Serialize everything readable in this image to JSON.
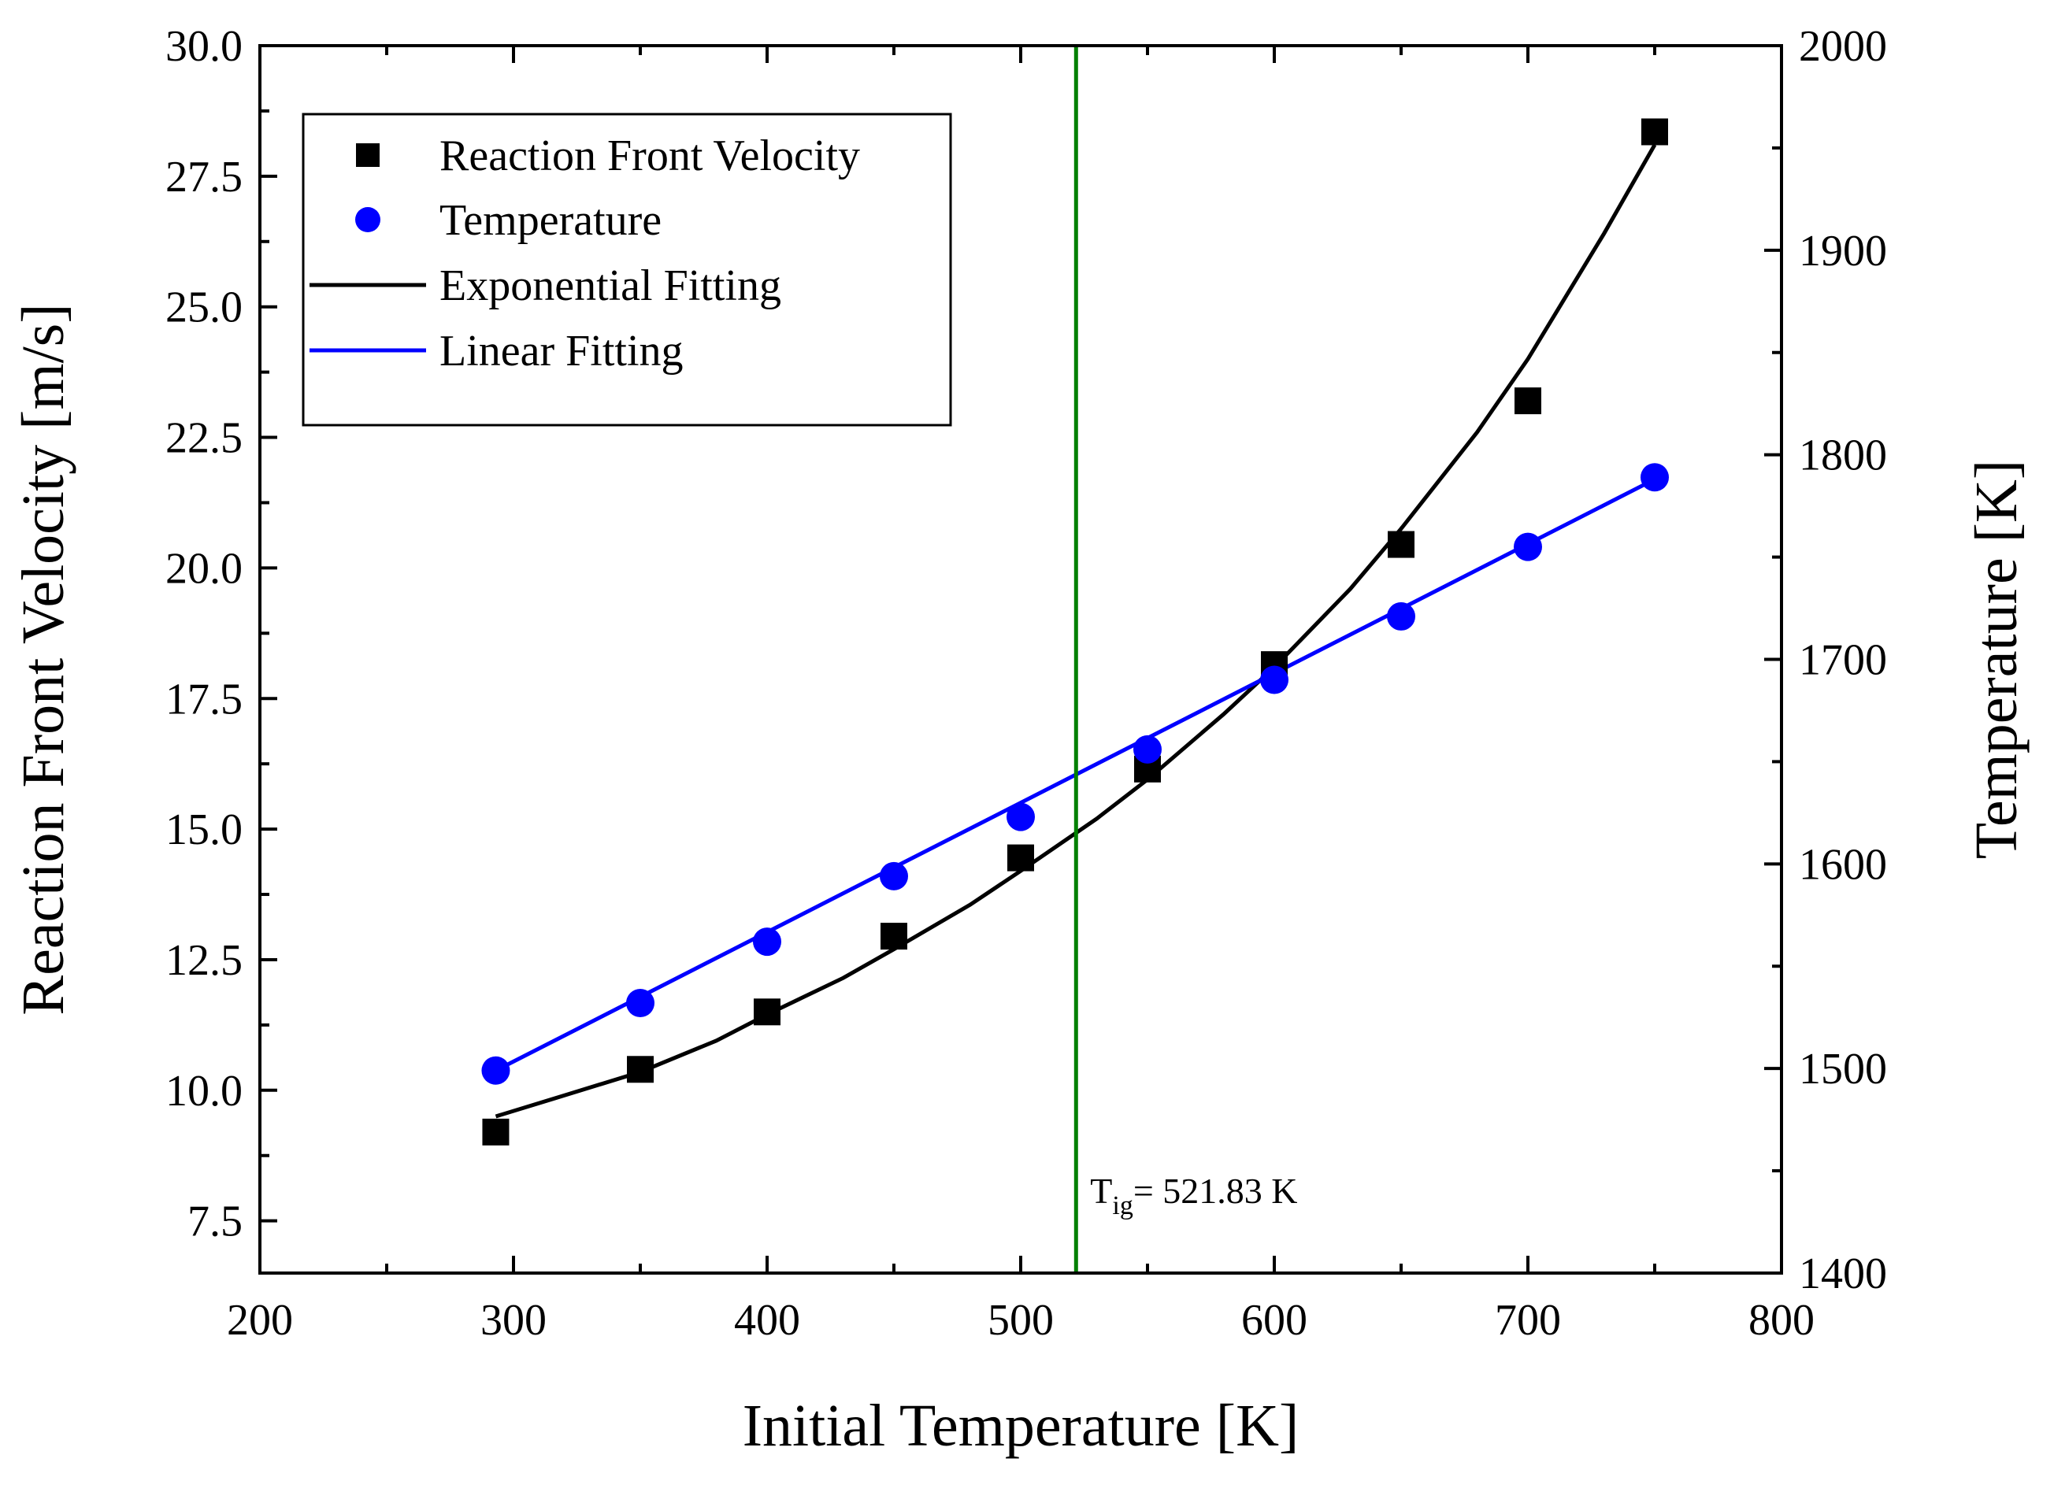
{
  "chart_data": {
    "type": "scatter",
    "xlabel": "Initial Temperature [K]",
    "ylabel_left": "Reaction Front Velocity [m/s]",
    "ylabel_right": "Temperature [K]",
    "xlim": [
      200,
      800
    ],
    "ylim_left": [
      6.5,
      30.0
    ],
    "ylim_right": [
      1400,
      2000
    ],
    "x_ticks": [
      200,
      300,
      400,
      500,
      600,
      700,
      800
    ],
    "x_tick_labels": [
      "200",
      "300",
      "400",
      "500",
      "600",
      "700",
      "800"
    ],
    "y_left_ticks": [
      7.5,
      10.0,
      12.5,
      15.0,
      17.5,
      20.0,
      22.5,
      25.0,
      27.5,
      30.0
    ],
    "y_left_tick_labels": [
      "7.5",
      "10.0",
      "12.5",
      "15.0",
      "17.5",
      "20.0",
      "22.5",
      "25.0",
      "27.5",
      "30.0"
    ],
    "y_right_ticks": [
      1400,
      1500,
      1600,
      1700,
      1800,
      1900,
      2000
    ],
    "y_right_tick_labels": [
      "1400",
      "1500",
      "1600",
      "1700",
      "1800",
      "1900",
      "2000"
    ],
    "series": [
      {
        "name": "Reaction Front Velocity",
        "axis": "left",
        "marker": "square",
        "color": "#000000",
        "x": [
          293,
          350,
          400,
          450,
          500,
          550,
          600,
          650,
          700,
          750
        ],
        "values": [
          9.2,
          10.4,
          11.5,
          12.95,
          14.45,
          16.15,
          18.15,
          20.45,
          23.2,
          28.35
        ]
      },
      {
        "name": "Temperature",
        "axis": "right",
        "marker": "circle",
        "color": "#0000ff",
        "x": [
          293,
          350,
          400,
          450,
          500,
          550,
          600,
          650,
          700,
          750
        ],
        "values": [
          1499,
          1532,
          1562,
          1594,
          1623,
          1656,
          1690,
          1721,
          1755,
          1789
        ]
      }
    ],
    "fits": [
      {
        "name": "Exponential Fitting",
        "axis": "left",
        "kind": "exponential",
        "color": "#000000",
        "x": [
          293,
          320,
          350,
          380,
          400,
          430,
          450,
          480,
          500,
          530,
          550,
          580,
          600,
          630,
          650,
          680,
          700,
          730,
          750
        ],
        "values": [
          9.5,
          9.9,
          10.35,
          10.95,
          11.45,
          12.15,
          12.7,
          13.55,
          14.2,
          15.2,
          15.95,
          17.2,
          18.1,
          19.6,
          20.75,
          22.6,
          24.0,
          26.4,
          28.1
        ]
      },
      {
        "name": "Linear Fitting",
        "axis": "right",
        "kind": "linear",
        "color": "#0000ff",
        "x": [
          293,
          750
        ],
        "values": [
          1499,
          1788
        ]
      }
    ],
    "reference_line": {
      "x": 521.83,
      "color": "#008000",
      "label_main": "T",
      "label_sub": "ig",
      "label_rest": "= 521.83 K"
    },
    "legend": {
      "position": "top-left",
      "entries": [
        {
          "label": "Reaction Front Velocity",
          "marker": "square",
          "color": "#000000"
        },
        {
          "label": "Temperature",
          "marker": "circle",
          "color": "#0000ff"
        },
        {
          "label": "Exponential Fitting",
          "marker": "line",
          "color": "#000000"
        },
        {
          "label": "Linear Fitting",
          "marker": "line",
          "color": "#0000ff"
        }
      ]
    }
  }
}
